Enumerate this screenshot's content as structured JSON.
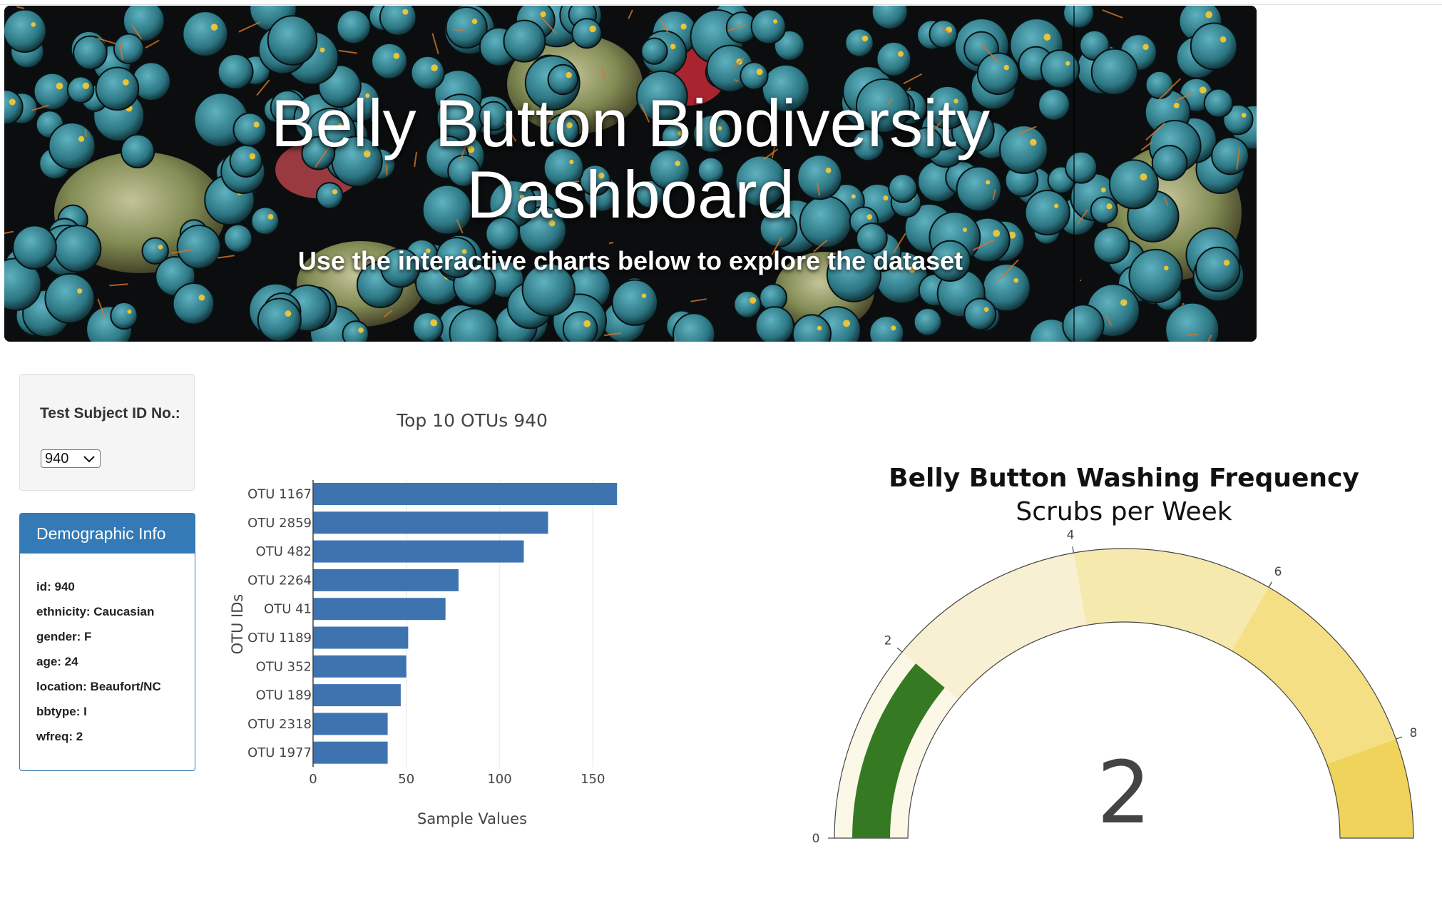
{
  "hero": {
    "title_line1": "Belly Button Biodiversity",
    "title_line2": "Dashboard",
    "subtitle": "Use the interactive charts below to explore the dataset"
  },
  "selector": {
    "label": "Test Subject ID No.:",
    "selected": "940"
  },
  "demographics": {
    "heading": "Demographic Info",
    "lines": [
      "id: 940",
      "ethnicity: Caucasian",
      "gender: F",
      "age: 24",
      "location: Beaufort/NC",
      "bbtype: I",
      "wfreq: 2"
    ]
  },
  "bar_chart": {
    "type": "bar",
    "orientation": "horizontal",
    "title": "Top 10 OTUs 940",
    "xlabel": "Sample Values",
    "ylabel": "OTU IDs",
    "categories": [
      "OTU 1167",
      "OTU 2859",
      "OTU 482",
      "OTU 2264",
      "OTU 41",
      "OTU 1189",
      "OTU 352",
      "OTU 189",
      "OTU 2318",
      "OTU 1977"
    ],
    "values": [
      163,
      126,
      113,
      78,
      71,
      51,
      50,
      47,
      40,
      40
    ],
    "xlim": [
      0,
      163
    ],
    "xticks": [
      0,
      50,
      100,
      150
    ],
    "grid": true,
    "bar_color": "#3d74b0"
  },
  "gauge_chart": {
    "type": "gauge",
    "title": "Belly Button Washing Frequency",
    "subtitle": "Scrubs per Week",
    "value": 2,
    "range": [
      0,
      9
    ],
    "ticks": [
      0,
      2,
      4,
      6,
      8
    ],
    "bar_color": "#357a22",
    "steps": [
      {
        "from": 0,
        "to": 2,
        "color": "#fcf8e8"
      },
      {
        "from": 2,
        "to": 4,
        "color": "#f8f0d2"
      },
      {
        "from": 4,
        "to": 6,
        "color": "#f6e9ad"
      },
      {
        "from": 6,
        "to": 8,
        "color": "#f4df85"
      },
      {
        "from": 8,
        "to": 9,
        "color": "#f0d35a"
      }
    ]
  }
}
